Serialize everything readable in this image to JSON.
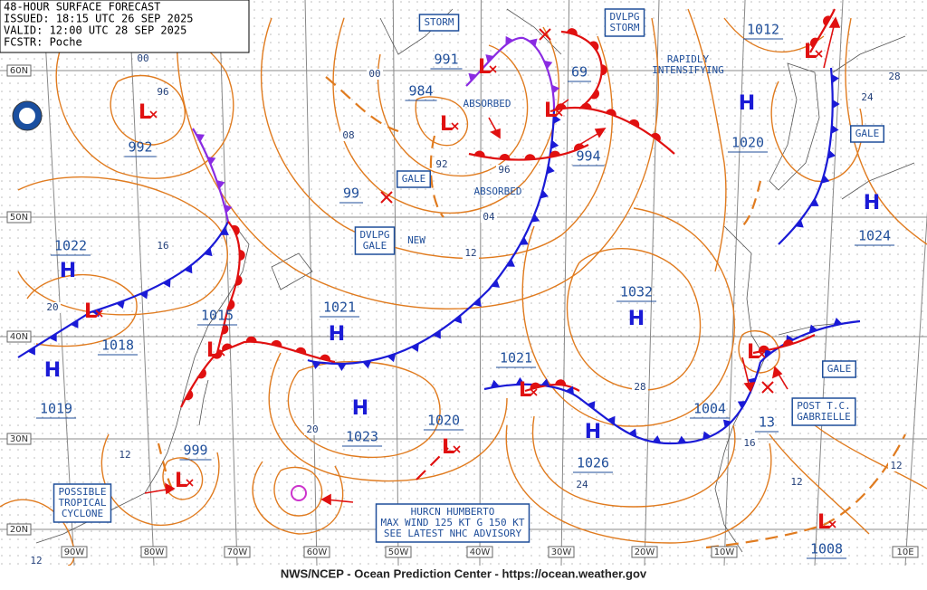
{
  "header": {
    "title": "48-HOUR SURFACE FORECAST",
    "issued": "ISSUED: 18:15 UTC 26 SEP 2025",
    "valid": "VALID:  12:00 UTC 28 SEP 2025",
    "forecaster": "FCSTR:  Poche"
  },
  "pressure_labels": [
    "992",
    "1022",
    "1018",
    "1019",
    "1015",
    "1021",
    "1023",
    "1020",
    "999",
    "1021",
    "984",
    "991",
    "99",
    "994",
    "69",
    "1032",
    "1026",
    "1004",
    "13",
    "1012",
    "1020",
    "1024",
    "1008"
  ],
  "pressure_systems": [
    "H",
    "H",
    "H",
    "H",
    "H",
    "H",
    "H",
    "H",
    "L",
    "L",
    "L",
    "L",
    "L",
    "L",
    "L",
    "L",
    "L",
    "L",
    "L",
    "L"
  ],
  "isobar_labels": [
    "00",
    "96",
    "00",
    "08",
    "92",
    "96",
    "04",
    "12",
    "16",
    "20",
    "20",
    "12",
    "12",
    "28",
    "24",
    "16",
    "12",
    "12",
    "24",
    "28"
  ],
  "annotations": [
    {
      "lines": [
        "STORM"
      ]
    },
    {
      "lines": [
        "DVLPG",
        "STORM"
      ]
    },
    {
      "lines": [
        "RAPIDLY",
        "INTENSIFYING"
      ]
    },
    {
      "lines": [
        "GALE"
      ]
    },
    {
      "lines": [
        "ABSORBED"
      ]
    },
    {
      "lines": [
        "ABSORBED"
      ]
    },
    {
      "lines": [
        "DVLPG",
        "GALE"
      ]
    },
    {
      "lines": [
        "NEW"
      ]
    },
    {
      "lines": [
        "GALE"
      ]
    },
    {
      "lines": [
        "GALE"
      ]
    },
    {
      "lines": [
        "POST T.C.",
        "GABRIELLE"
      ]
    },
    {
      "lines": [
        "POSSIBLE",
        "TROPICAL",
        "CYCLONE"
      ]
    },
    {
      "lines": [
        "HURCN HUMBERTO",
        "MAX WIND 125 KT G 150 KT",
        "SEE LATEST NHC ADVISORY"
      ]
    }
  ],
  "latitude_labels": [
    "60N",
    "50N",
    "40N",
    "30N",
    "20N"
  ],
  "longitude_labels": [
    "90W",
    "80W",
    "70W",
    "60W",
    "50W",
    "40W",
    "30W",
    "20W",
    "10W",
    "10E"
  ],
  "footer": "NWS/NCEP - Ocean Prediction Center - https://ocean.weather.gov"
}
